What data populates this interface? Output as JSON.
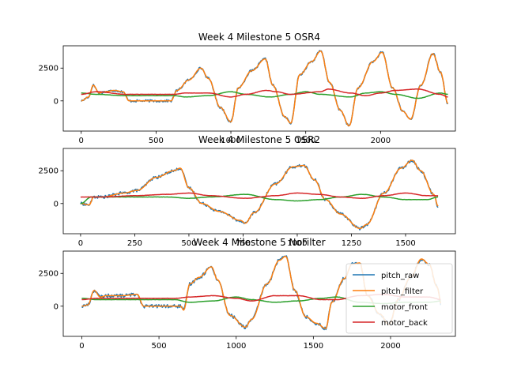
{
  "figure": {
    "series_names": [
      "pitch_raw",
      "pitch_filter",
      "motor_front",
      "motor_back"
    ],
    "colors": {
      "pitch_raw": "#1f77b4",
      "pitch_filter": "#ff7f0e",
      "motor_front": "#2ca02c",
      "motor_back": "#d62728"
    }
  },
  "chart_data": [
    {
      "type": "line",
      "title": "Week 4 Milestone 5 OSR4",
      "xlabel": "",
      "ylabel": "",
      "xlim": [
        -120,
        2500
      ],
      "ylim": [
        -2300,
        4200
      ],
      "xticks": [
        0,
        500,
        1000,
        1500,
        2000
      ],
      "yticks": [
        0,
        2500
      ],
      "legend": "none",
      "pitch_keypoints": [
        [
          0,
          0
        ],
        [
          50,
          300
        ],
        [
          80,
          1200
        ],
        [
          120,
          600
        ],
        [
          160,
          700
        ],
        [
          220,
          800
        ],
        [
          280,
          700
        ],
        [
          320,
          0
        ],
        [
          600,
          0
        ],
        [
          640,
          800
        ],
        [
          720,
          1600
        ],
        [
          800,
          2500
        ],
        [
          850,
          1700
        ],
        [
          930,
          -500
        ],
        [
          1000,
          -1600
        ],
        [
          1050,
          1000
        ],
        [
          1140,
          2300
        ],
        [
          1230,
          3200
        ],
        [
          1280,
          1200
        ],
        [
          1360,
          -1200
        ],
        [
          1400,
          -1700
        ],
        [
          1460,
          2000
        ],
        [
          1540,
          3000
        ],
        [
          1600,
          3800
        ],
        [
          1660,
          1400
        ],
        [
          1730,
          -700
        ],
        [
          1790,
          -1900
        ],
        [
          1850,
          1000
        ],
        [
          1950,
          3000
        ],
        [
          2010,
          3700
        ],
        [
          2080,
          1000
        ],
        [
          2150,
          -800
        ],
        [
          2200,
          -1400
        ],
        [
          2270,
          1200
        ],
        [
          2350,
          3600
        ],
        [
          2400,
          2200
        ],
        [
          2450,
          -200
        ]
      ],
      "front_keypoints": [
        [
          0,
          600
        ],
        [
          100,
          500
        ],
        [
          300,
          400
        ],
        [
          620,
          400
        ],
        [
          700,
          300
        ],
        [
          850,
          400
        ],
        [
          1000,
          700
        ],
        [
          1100,
          500
        ],
        [
          1260,
          300
        ],
        [
          1400,
          500
        ],
        [
          1500,
          700
        ],
        [
          1600,
          500
        ],
        [
          1800,
          300
        ],
        [
          1900,
          600
        ],
        [
          2000,
          700
        ],
        [
          2100,
          500
        ],
        [
          2250,
          200
        ],
        [
          2400,
          600
        ],
        [
          2450,
          500
        ]
      ],
      "back_keypoints": [
        [
          0,
          500
        ],
        [
          100,
          700
        ],
        [
          300,
          500
        ],
        [
          620,
          500
        ],
        [
          700,
          600
        ],
        [
          850,
          600
        ],
        [
          1000,
          300
        ],
        [
          1100,
          500
        ],
        [
          1240,
          800
        ],
        [
          1300,
          700
        ],
        [
          1400,
          500
        ],
        [
          1600,
          700
        ],
        [
          1650,
          900
        ],
        [
          1800,
          600
        ],
        [
          1900,
          400
        ],
        [
          2000,
          600
        ],
        [
          2100,
          800
        ],
        [
          2250,
          900
        ],
        [
          2400,
          500
        ],
        [
          2450,
          300
        ]
      ],
      "raw_noise": 90,
      "x_end": 2450
    },
    {
      "type": "line",
      "title": "Week 4 Milestone 5 OSR2",
      "xlabel": "",
      "ylabel": "",
      "xlim": [
        -80,
        1730
      ],
      "ylim": [
        -2300,
        4200
      ],
      "xticks": [
        0,
        250,
        500,
        750,
        1000,
        1250,
        1500
      ],
      "yticks": [
        0,
        2500
      ],
      "legend": "none",
      "pitch_keypoints": [
        [
          0,
          0
        ],
        [
          40,
          -100
        ],
        [
          60,
          500
        ],
        [
          100,
          500
        ],
        [
          200,
          800
        ],
        [
          260,
          1000
        ],
        [
          350,
          2000
        ],
        [
          430,
          2500
        ],
        [
          460,
          2700
        ],
        [
          500,
          1200
        ],
        [
          560,
          0
        ],
        [
          640,
          -600
        ],
        [
          740,
          -1300
        ],
        [
          760,
          -1500
        ],
        [
          800,
          -700
        ],
        [
          900,
          1500
        ],
        [
          980,
          2800
        ],
        [
          1030,
          2900
        ],
        [
          1080,
          1800
        ],
        [
          1130,
          300
        ],
        [
          1200,
          -800
        ],
        [
          1290,
          -1900
        ],
        [
          1320,
          -1600
        ],
        [
          1400,
          800
        ],
        [
          1480,
          2700
        ],
        [
          1530,
          3300
        ],
        [
          1570,
          2500
        ],
        [
          1630,
          700
        ],
        [
          1650,
          -200
        ]
      ],
      "front_keypoints": [
        [
          0,
          0
        ],
        [
          50,
          500
        ],
        [
          250,
          500
        ],
        [
          400,
          500
        ],
        [
          500,
          400
        ],
        [
          600,
          500
        ],
        [
          760,
          700
        ],
        [
          900,
          300
        ],
        [
          1000,
          200
        ],
        [
          1100,
          300
        ],
        [
          1200,
          500
        ],
        [
          1300,
          700
        ],
        [
          1400,
          500
        ],
        [
          1500,
          300
        ],
        [
          1600,
          300
        ],
        [
          1650,
          500
        ]
      ],
      "back_keypoints": [
        [
          0,
          500
        ],
        [
          100,
          500
        ],
        [
          250,
          600
        ],
        [
          400,
          700
        ],
        [
          500,
          800
        ],
        [
          600,
          600
        ],
        [
          760,
          400
        ],
        [
          900,
          600
        ],
        [
          1000,
          800
        ],
        [
          1100,
          700
        ],
        [
          1200,
          500
        ],
        [
          1300,
          400
        ],
        [
          1400,
          600
        ],
        [
          1500,
          800
        ],
        [
          1600,
          600
        ],
        [
          1650,
          600
        ]
      ],
      "raw_noise": 110,
      "x_end": 1650
    },
    {
      "type": "line",
      "title": "Week 4 Milestone 5 NoFilter",
      "xlabel": "",
      "ylabel": "",
      "xlim": [
        -120,
        2420
      ],
      "ylim": [
        -2300,
        4200
      ],
      "xticks": [
        0,
        500,
        1000,
        1500,
        2000
      ],
      "yticks": [
        0,
        2500
      ],
      "legend": "lower right",
      "pitch_keypoints": [
        [
          0,
          0
        ],
        [
          40,
          100
        ],
        [
          80,
          1200
        ],
        [
          120,
          700
        ],
        [
          160,
          800
        ],
        [
          260,
          800
        ],
        [
          360,
          900
        ],
        [
          400,
          0
        ],
        [
          640,
          0
        ],
        [
          660,
          -300
        ],
        [
          700,
          1700
        ],
        [
          760,
          2200
        ],
        [
          840,
          3000
        ],
        [
          880,
          2000
        ],
        [
          960,
          -700
        ],
        [
          1060,
          -1600
        ],
        [
          1100,
          -1000
        ],
        [
          1200,
          1700
        ],
        [
          1280,
          3500
        ],
        [
          1320,
          3800
        ],
        [
          1380,
          1200
        ],
        [
          1450,
          -800
        ],
        [
          1520,
          -1300
        ],
        [
          1580,
          -1700
        ],
        [
          1620,
          300
        ],
        [
          1700,
          2100
        ],
        [
          1750,
          3200
        ],
        [
          1800,
          3300
        ],
        [
          1850,
          800
        ],
        [
          1930,
          -600
        ],
        [
          1990,
          -1400
        ],
        [
          2050,
          500
        ],
        [
          2130,
          2200
        ],
        [
          2200,
          3600
        ],
        [
          2250,
          3200
        ],
        [
          2300,
          1500
        ],
        [
          2330,
          100
        ]
      ],
      "front_keypoints": [
        [
          0,
          600
        ],
        [
          100,
          500
        ],
        [
          300,
          500
        ],
        [
          600,
          500
        ],
        [
          700,
          300
        ],
        [
          850,
          400
        ],
        [
          1000,
          700
        ],
        [
          1100,
          500
        ],
        [
          1250,
          300
        ],
        [
          1400,
          400
        ],
        [
          1550,
          600
        ],
        [
          1650,
          700
        ],
        [
          1800,
          300
        ],
        [
          1950,
          200
        ],
        [
          2100,
          300
        ],
        [
          2250,
          300
        ],
        [
          2330,
          400
        ]
      ],
      "back_keypoints": [
        [
          0,
          500
        ],
        [
          100,
          600
        ],
        [
          300,
          600
        ],
        [
          600,
          600
        ],
        [
          700,
          700
        ],
        [
          850,
          800
        ],
        [
          1000,
          600
        ],
        [
          1100,
          400
        ],
        [
          1250,
          800
        ],
        [
          1400,
          800
        ],
        [
          1550,
          500
        ],
        [
          1650,
          500
        ],
        [
          1800,
          800
        ],
        [
          1950,
          900
        ],
        [
          2100,
          700
        ],
        [
          2250,
          700
        ],
        [
          2330,
          500
        ]
      ],
      "raw_noise": 130,
      "x_end": 2330
    }
  ]
}
